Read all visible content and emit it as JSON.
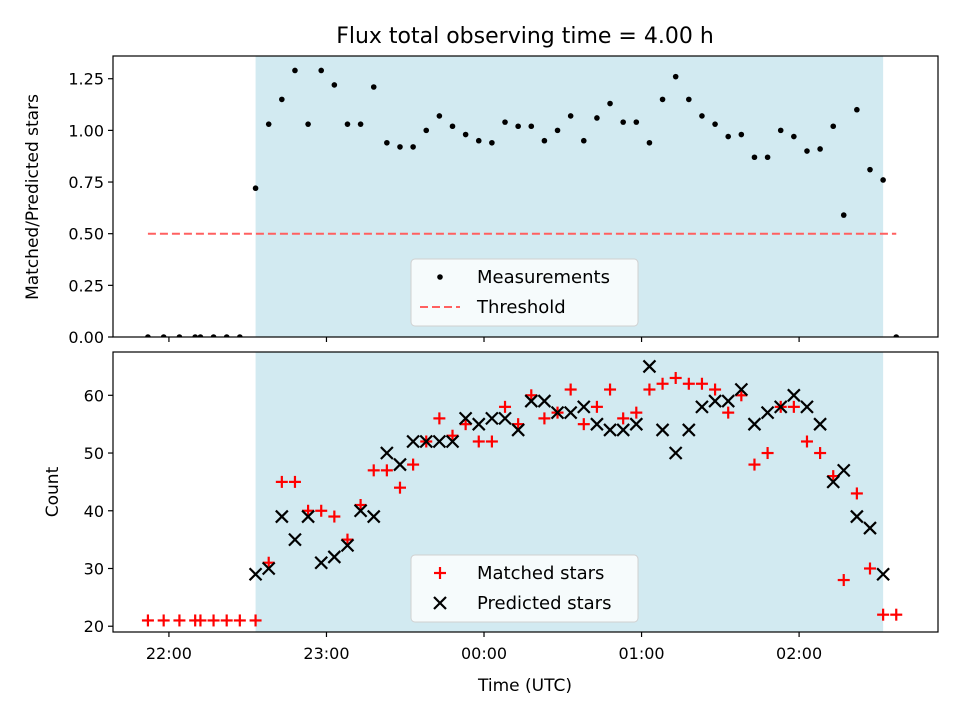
{
  "figure": {
    "title": "Flux total observing time = 4.00 h",
    "xlabel": "Time (UTC)",
    "x_ticks": [
      {
        "value": -120,
        "label": "22:00"
      },
      {
        "value": -60,
        "label": "23:00"
      },
      {
        "value": 0,
        "label": "00:00"
      },
      {
        "value": 60,
        "label": "01:00"
      },
      {
        "value": 120,
        "label": "02:00"
      }
    ],
    "x_units_note": "minutes relative to 00:00 UTC",
    "xlim": [
      -141.3,
      172.9
    ],
    "shaded_span": [
      -87,
      152
    ],
    "colors": {
      "shade": "#add8e6",
      "measurement": "#000000",
      "threshold": "#ff6060",
      "matched": "#ff0000",
      "predicted": "#000000"
    }
  },
  "chart_data": [
    {
      "type": "scatter",
      "ylabel": "Matched/Predicted stars",
      "ylim": [
        0,
        1.36
      ],
      "y_ticks": [
        "0.00",
        "0.25",
        "0.50",
        "0.75",
        "1.00",
        "1.25"
      ],
      "y_tick_values": [
        0,
        0.25,
        0.5,
        0.75,
        1.0,
        1.25
      ],
      "grid": false,
      "legend": {
        "placement": "lower center",
        "entries": [
          "Measurements",
          "Threshold"
        ]
      },
      "threshold": {
        "name": "Threshold",
        "y": 0.5,
        "x_range": [
          -128,
          157
        ]
      },
      "series": [
        {
          "name": "Measurements",
          "x": [
            -128,
            -122,
            -116,
            -110,
            -108,
            -103,
            -98,
            -93,
            -87,
            -82,
            -77,
            -72,
            -67,
            -62,
            -57,
            -52,
            -47,
            -42,
            -37,
            -32,
            -27,
            -22,
            -17,
            -12,
            -7,
            -2,
            3,
            8,
            13,
            18,
            23,
            28,
            33,
            38,
            43,
            48,
            53,
            58,
            63,
            68,
            73,
            78,
            83,
            88,
            93,
            98,
            103,
            108,
            113,
            118,
            123,
            128,
            133,
            137,
            142,
            147,
            157
          ],
          "y": [
            0,
            0,
            0,
            0,
            0,
            0,
            0,
            0,
            0.72,
            1.03,
            1.15,
            1.29,
            1.03,
            1.29,
            1.22,
            1.03,
            1.03,
            1.21,
            0.94,
            0.92,
            0.92,
            1.0,
            1.07,
            1.02,
            0.98,
            0.95,
            0.94,
            1.04,
            1.02,
            1.02,
            0.95,
            1.0,
            1.07,
            0.95,
            1.06,
            1.13,
            1.04,
            1.04,
            0.94,
            1.15,
            1.26,
            1.15,
            1.07,
            1.03,
            0.97,
            0.98,
            0.87,
            0.87,
            1.0,
            0.97,
            0.9,
            0.91,
            1.02,
            0.59,
            1.1,
            0.81,
            0
          ]
        }
      ],
      "extra_points": [
        {
          "x": 152,
          "y": 0.76
        }
      ]
    },
    {
      "type": "scatter",
      "ylabel": "Count",
      "ylim": [
        19,
        67.5
      ],
      "y_ticks": [
        "20",
        "30",
        "40",
        "50",
        "60"
      ],
      "y_tick_values": [
        20,
        30,
        40,
        50,
        60
      ],
      "grid": false,
      "legend": {
        "placement": "lower center",
        "entries": [
          "Matched stars",
          "Predicted stars"
        ]
      },
      "series": [
        {
          "name": "Matched stars",
          "marker": "+",
          "x": [
            -128,
            -122,
            -116,
            -110,
            -108,
            -103,
            -98,
            -93,
            -87,
            -82,
            -77,
            -72,
            -67,
            -62,
            -57,
            -52,
            -47,
            -42,
            -37,
            -32,
            -27,
            -22,
            -17,
            -12,
            -7,
            -2,
            3,
            8,
            13,
            18,
            23,
            28,
            33,
            38,
            43,
            48,
            53,
            58,
            63,
            68,
            73,
            78,
            83,
            88,
            93,
            98,
            103,
            108,
            113,
            118,
            123,
            128,
            133,
            137,
            142,
            147,
            152,
            157
          ],
          "y": [
            21,
            21,
            21,
            21,
            21,
            21,
            21,
            21,
            21,
            31,
            45,
            45,
            40,
            40,
            39,
            35,
            41,
            47,
            47,
            44,
            48,
            52,
            56,
            53,
            55,
            52,
            52,
            58,
            55,
            60,
            56,
            57,
            61,
            55,
            58,
            61,
            56,
            57,
            61,
            62,
            63,
            62,
            62,
            61,
            57,
            60,
            48,
            50,
            58,
            58,
            52,
            50,
            46,
            28,
            43,
            30,
            22,
            22
          ]
        },
        {
          "name": "Predicted stars",
          "marker": "x",
          "x": [
            -87,
            -82,
            -77,
            -72,
            -67,
            -62,
            -57,
            -52,
            -47,
            -42,
            -37,
            -32,
            -27,
            -22,
            -17,
            -12,
            -7,
            -2,
            3,
            8,
            13,
            18,
            23,
            28,
            33,
            38,
            43,
            48,
            53,
            58,
            63,
            68,
            73,
            78,
            83,
            88,
            93,
            98,
            103,
            108,
            113,
            118,
            123,
            128,
            133,
            137,
            142,
            147,
            152
          ],
          "y": [
            29,
            30,
            39,
            35,
            39,
            31,
            32,
            34,
            40,
            39,
            50,
            48,
            52,
            52,
            52,
            52,
            56,
            55,
            56,
            56,
            54,
            59,
            59,
            57,
            57,
            58,
            55,
            54,
            54,
            55,
            65,
            54,
            50,
            54,
            58,
            59,
            59,
            61,
            55,
            57,
            58,
            60,
            58,
            55,
            45,
            47,
            39,
            37,
            29
          ]
        }
      ]
    }
  ]
}
